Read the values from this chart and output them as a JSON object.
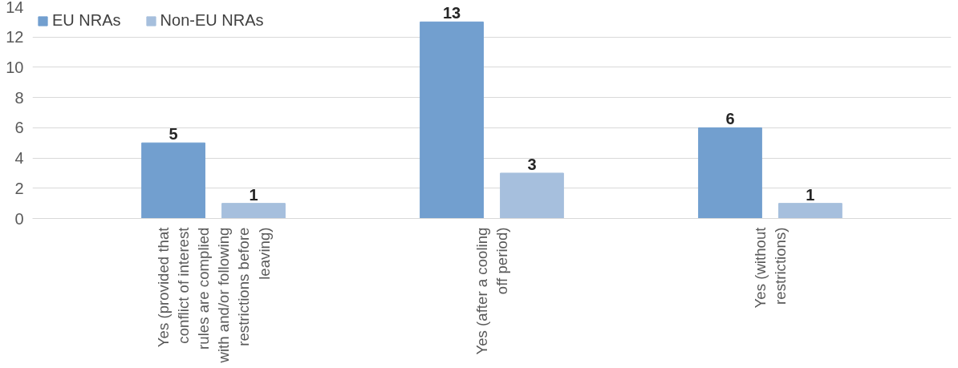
{
  "chart_data": {
    "type": "bar",
    "categories": [
      "Yes (provided that conflict of interest rules are complied with and/or following restrictions before leaving)",
      "Yes (after a cooling off period)",
      "Yes (without restrictions)"
    ],
    "series": [
      {
        "name": "EU NRAs",
        "color": "#729fcf",
        "values": [
          5,
          13,
          6
        ]
      },
      {
        "name": "Non-EU NRAs",
        "color": "#a6bfdd",
        "values": [
          1,
          3,
          1
        ]
      }
    ],
    "ylim": [
      0,
      14
    ],
    "yticks": [
      0,
      2,
      4,
      6,
      8,
      10,
      12,
      14
    ],
    "grid": "y",
    "legend": "top left",
    "data_labels": true
  }
}
